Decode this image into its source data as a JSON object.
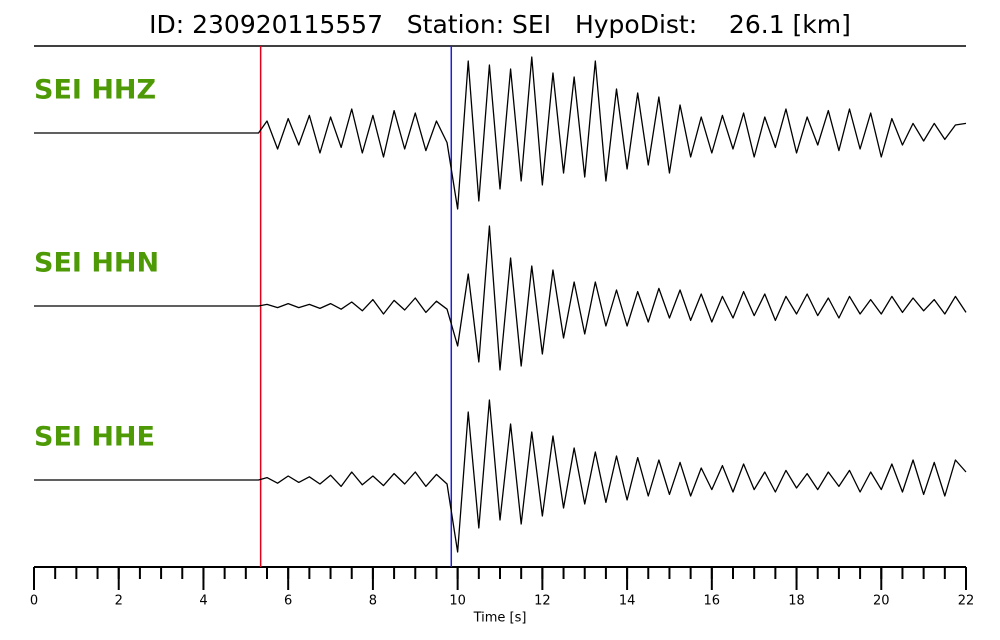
{
  "chart_data": {
    "type": "seismogram",
    "title": "ID: 230920115557   Station: SEI   HypoDist:    26.1 [km]",
    "xlabel": "Time [s]",
    "xlim": [
      0,
      22
    ],
    "xticks": [
      0,
      2,
      4,
      6,
      8,
      10,
      12,
      14,
      16,
      18,
      20,
      22
    ],
    "xminorticks": [
      0,
      0.5,
      1,
      1.5,
      2,
      2.5,
      3,
      3.5,
      4,
      4.5,
      5,
      5.5,
      6,
      6.5,
      7,
      7.5,
      8,
      8.5,
      9,
      9.5,
      10,
      10.5,
      11,
      11.5,
      12,
      12.5,
      13,
      13.5,
      14,
      14.5,
      15,
      15.5,
      16,
      16.5,
      17,
      17.5,
      18,
      18.5,
      19,
      19.5,
      20,
      20.5,
      21,
      21.5,
      22
    ],
    "ylim": [
      -1,
      1
    ],
    "label_color": "#4e9a06",
    "markers": [
      {
        "x": 5.35,
        "color": "#e3001b"
      },
      {
        "x": 9.85,
        "color": "#1f1fd6"
      }
    ],
    "x": [
      0,
      5.3,
      5.5,
      5.75,
      6,
      6.25,
      6.5,
      6.75,
      7,
      7.25,
      7.5,
      7.75,
      8,
      8.25,
      8.5,
      8.75,
      9,
      9.25,
      9.5,
      9.75,
      10,
      10.25,
      10.5,
      10.75,
      11,
      11.25,
      11.5,
      11.75,
      12,
      12.25,
      12.5,
      12.75,
      13,
      13.25,
      13.5,
      13.75,
      14,
      14.25,
      14.5,
      14.75,
      15,
      15.25,
      15.5,
      15.75,
      16,
      16.25,
      16.5,
      16.75,
      17,
      17.25,
      17.5,
      17.75,
      18,
      18.25,
      18.5,
      18.75,
      19,
      19.25,
      19.5,
      19.75,
      20,
      20.25,
      20.5,
      20.75,
      21,
      21.25,
      21.5,
      21.75,
      22
    ],
    "series": [
      {
        "name": "SEI HHZ",
        "color": "#000000",
        "values": [
          0,
          0,
          0.15,
          -0.2,
          0.18,
          -0.15,
          0.22,
          -0.25,
          0.2,
          -0.18,
          0.3,
          -0.25,
          0.22,
          -0.3,
          0.28,
          -0.2,
          0.25,
          -0.22,
          0.15,
          -0.12,
          -0.95,
          0.9,
          -0.85,
          0.85,
          -0.7,
          0.8,
          -0.6,
          0.95,
          -0.65,
          0.75,
          -0.5,
          0.7,
          -0.55,
          0.9,
          -0.6,
          0.55,
          -0.45,
          0.5,
          -0.4,
          0.45,
          -0.5,
          0.35,
          -0.3,
          0.2,
          -0.25,
          0.22,
          -0.2,
          0.25,
          -0.3,
          0.2,
          -0.18,
          0.3,
          -0.25,
          0.2,
          -0.15,
          0.28,
          -0.22,
          0.3,
          -0.2,
          0.25,
          -0.3,
          0.18,
          -0.15,
          0.12,
          -0.1,
          0.12,
          -0.08,
          0.1,
          0.12
        ]
      },
      {
        "name": "SEI HHN",
        "color": "#000000",
        "values": [
          0,
          0,
          0.02,
          -0.02,
          0.03,
          -0.02,
          0.02,
          -0.03,
          0.03,
          -0.04,
          0.05,
          -0.06,
          0.08,
          -0.1,
          0.07,
          -0.05,
          0.1,
          -0.08,
          0.06,
          -0.04,
          -0.5,
          0.4,
          -0.7,
          1.0,
          -0.8,
          0.6,
          -0.75,
          0.5,
          -0.6,
          0.45,
          -0.4,
          0.3,
          -0.35,
          0.3,
          -0.25,
          0.2,
          -0.25,
          0.18,
          -0.2,
          0.22,
          -0.15,
          0.2,
          -0.18,
          0.15,
          -0.2,
          0.12,
          -0.15,
          0.18,
          -0.12,
          0.15,
          -0.18,
          0.12,
          -0.1,
          0.15,
          -0.12,
          0.1,
          -0.15,
          0.12,
          -0.1,
          0.08,
          -0.1,
          0.12,
          -0.08,
          0.1,
          -0.06,
          0.08,
          -0.1,
          0.12,
          -0.08
        ]
      },
      {
        "name": "SEI HHE",
        "color": "#000000",
        "values": [
          0,
          0,
          0.03,
          -0.04,
          0.05,
          -0.03,
          0.04,
          -0.05,
          0.06,
          -0.08,
          0.1,
          -0.06,
          0.05,
          -0.07,
          0.08,
          -0.05,
          0.1,
          -0.08,
          0.07,
          -0.05,
          -0.9,
          0.85,
          -0.6,
          1.0,
          -0.5,
          0.7,
          -0.55,
          0.6,
          -0.45,
          0.55,
          -0.35,
          0.4,
          -0.3,
          0.35,
          -0.28,
          0.3,
          -0.25,
          0.28,
          -0.2,
          0.25,
          -0.18,
          0.22,
          -0.2,
          0.15,
          -0.12,
          0.18,
          -0.15,
          0.2,
          -0.12,
          0.1,
          -0.15,
          0.12,
          -0.1,
          0.08,
          -0.12,
          0.1,
          -0.08,
          0.12,
          -0.15,
          0.1,
          -0.12,
          0.2,
          -0.15,
          0.25,
          -0.18,
          0.22,
          -0.2,
          0.25,
          0.1
        ]
      }
    ]
  }
}
